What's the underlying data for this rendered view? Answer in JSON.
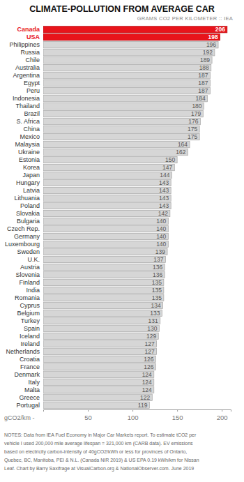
{
  "chart_data": {
    "type": "bar",
    "orientation": "horizontal",
    "title": "CLIMATE-POLLUTION FROM AVERAGE CAR",
    "subtitle": "GRAMS CO2 PER KILOMETER :: IEA",
    "x_label": "gCO2/km -",
    "categories": [
      "Canada",
      "USA",
      "Philippines",
      "Russia",
      "Chile",
      "Australia",
      "Argentina",
      "Egypt",
      "Peru",
      "Indonesia",
      "Thailand",
      "Brazil",
      "S. Africa",
      "China",
      "Mexico",
      "Malaysia",
      "Ukraine",
      "Estonia",
      "Korea",
      "Japan",
      "Hungary",
      "Latvia",
      "Lithuania",
      "Poland",
      "Slovakia",
      "Bulgaria",
      "Czech Rep.",
      "Germany",
      "Luxembourg",
      "Sweden",
      "U.K.",
      "Austria",
      "Slovenia",
      "Finland",
      "India",
      "Romania",
      "Cyprus",
      "Belgium",
      "Turkey",
      "Spain",
      "Iceland",
      "Ireland",
      "Netherlands",
      "Croatia",
      "France",
      "Denmark",
      "Italy",
      "Malta",
      "Greece",
      "Portugal"
    ],
    "values": [
      206,
      198,
      196,
      192,
      189,
      188,
      187,
      187,
      187,
      184,
      180,
      179,
      176,
      175,
      175,
      164,
      162,
      150,
      147,
      144,
      143,
      143,
      143,
      143,
      142,
      140,
      140,
      140,
      140,
      139,
      137,
      136,
      136,
      135,
      135,
      135,
      134,
      133,
      131,
      130,
      129,
      127,
      127,
      126,
      126,
      124,
      124,
      124,
      122,
      119
    ],
    "colors": [
      "#e8141b",
      "#e8141b",
      "#d6d6d6",
      "#d6d6d6",
      "#d6d6d6",
      "#d6d6d6",
      "#d6d6d6",
      "#d6d6d6",
      "#d6d6d6",
      "#d6d6d6",
      "#d6d6d6",
      "#d6d6d6",
      "#d6d6d6",
      "#d6d6d6",
      "#d6d6d6",
      "#d6d6d6",
      "#d6d6d6",
      "#d6d6d6",
      "#d6d6d6",
      "#d6d6d6",
      "#d6d6d6",
      "#d6d6d6",
      "#d6d6d6",
      "#d6d6d6",
      "#d6d6d6",
      "#d6d6d6",
      "#d6d6d6",
      "#d6d6d6",
      "#d6d6d6",
      "#d6d6d6",
      "#d6d6d6",
      "#d6d6d6",
      "#d6d6d6",
      "#d6d6d6",
      "#d6d6d6",
      "#d6d6d6",
      "#d6d6d6",
      "#d6d6d6",
      "#d6d6d6",
      "#d6d6d6",
      "#d6d6d6",
      "#d6d6d6",
      "#d6d6d6",
      "#d6d6d6",
      "#d6d6d6",
      "#d6d6d6",
      "#d6d6d6",
      "#d6d6d6",
      "#d6d6d6",
      "#d6d6d6"
    ],
    "xlim": [
      0,
      210
    ],
    "xticks": [
      50,
      100,
      150,
      200
    ],
    "data_labels": true,
    "annotations": [
      "NOTES: Data from IEA Fuel Economy in Major Car Markets report. To estimate tCO2 per",
      "vehicle I used 200,000 mile average lifespan = 321,000 km (CARB data). EV emissions",
      "based on electricity carbon-intensity of 40gCO2/kWh or less for provinces of Ontario,",
      "Quebec, BC, Manitoba, PEI & N.L. (Canada NIR 2019) & US EPA 0.19 kWh/km for Nissan",
      "Leaf. Chart by Barry Saxifrage at VisualCarbon.org & NationalObserver.com. June 2019"
    ]
  }
}
